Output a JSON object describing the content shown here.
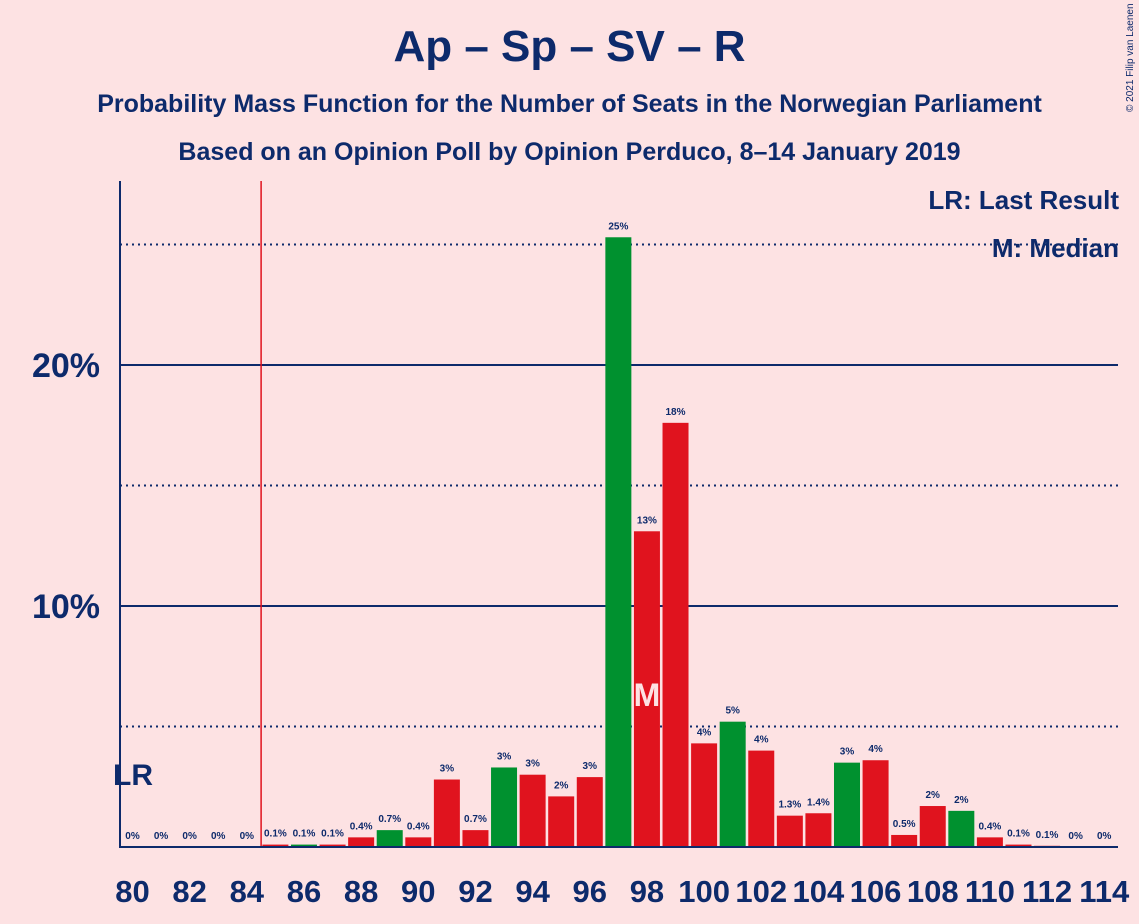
{
  "title": "Ap – Sp – SV – R",
  "subtitle1": "Probability Mass Function for the Number of Seats in the Norwegian Parliament",
  "subtitle2": "Based on an Opinion Poll by Opinion Perduco, 8–14 January 2019",
  "copyright": "© 2021 Filip van Laenen",
  "legend": {
    "lr": "LR: Last Result",
    "median": "M: Median"
  },
  "colors": {
    "background": "#fde2e3",
    "text": "#0d2a6b",
    "green": "#00912f",
    "red": "#e0131e",
    "lastResultLine": "#e0131e"
  },
  "chart_data": {
    "type": "bar",
    "x": [
      80,
      81,
      82,
      83,
      84,
      85,
      86,
      87,
      88,
      89,
      90,
      91,
      92,
      93,
      94,
      95,
      96,
      97,
      98,
      99,
      100,
      101,
      102,
      103,
      104,
      105,
      106,
      107,
      108,
      109,
      110,
      111,
      112,
      113,
      114
    ],
    "values": [
      0,
      0,
      0,
      0,
      0,
      0.1,
      0.1,
      0.1,
      0.4,
      0.7,
      0.4,
      2.8,
      0.7,
      3.3,
      3.0,
      2.1,
      2.9,
      25.3,
      13.1,
      17.6,
      4.3,
      5.2,
      4.0,
      1.3,
      1.4,
      3.5,
      3.6,
      0.5,
      1.7,
      1.5,
      0.4,
      0.1,
      0.05,
      0.01,
      0.005
    ],
    "labels": [
      "0%",
      "0%",
      "0%",
      "0%",
      "0%",
      "0.1%",
      "0.1%",
      "0.1%",
      "0.4%",
      "0.7%",
      "0.4%",
      "3%",
      "0.7%",
      "3%",
      "3%",
      "2%",
      "3%",
      "25%",
      "13%",
      "18%",
      "4%",
      "5%",
      "4%",
      "1.3%",
      "1.4%",
      "3%",
      "4%",
      "0.5%",
      "2%",
      "2%",
      "0.4%",
      "0.1%",
      "0.1%",
      "0%",
      "0%"
    ],
    "colors": [
      "green",
      "red",
      "green",
      "red",
      "green",
      "red",
      "green",
      "red",
      "red",
      "green",
      "red",
      "red",
      "red",
      "green",
      "red",
      "red",
      "red",
      "green",
      "red",
      "red",
      "red",
      "green",
      "red",
      "red",
      "red",
      "green",
      "red",
      "red",
      "red",
      "green",
      "red",
      "red",
      "red",
      "green",
      "red"
    ],
    "xticks": [
      80,
      82,
      84,
      86,
      88,
      90,
      92,
      94,
      96,
      98,
      100,
      102,
      104,
      106,
      108,
      110,
      112,
      114
    ],
    "yticks": [
      {
        "value": 10,
        "label": "10%"
      },
      {
        "value": 20,
        "label": "20%"
      }
    ],
    "dotted_gridlines": [
      5,
      15,
      25
    ],
    "ylim": [
      0,
      27.5
    ],
    "last_result": 85,
    "last_result_label": "LR",
    "median": 98,
    "median_label": "M"
  }
}
